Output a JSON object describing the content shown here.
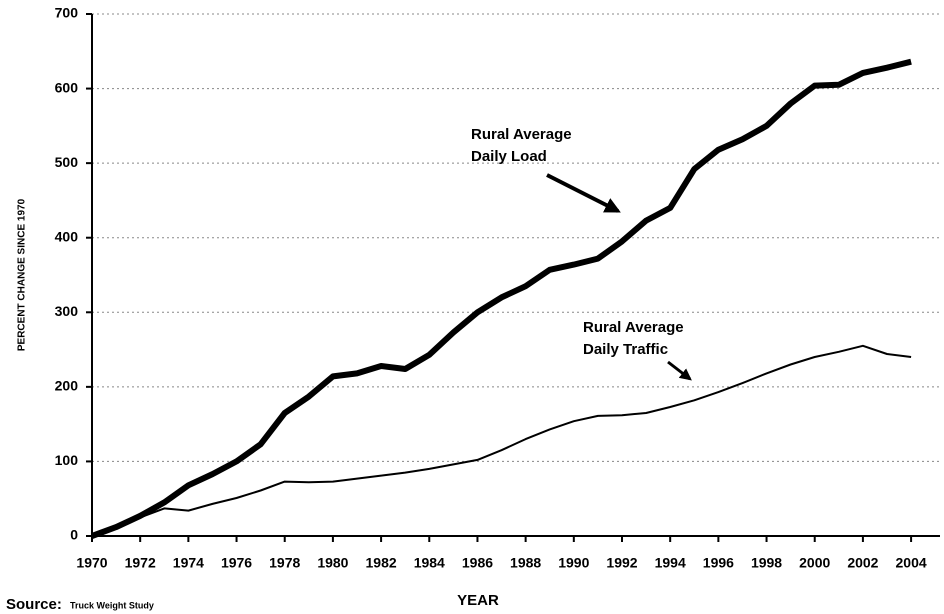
{
  "chart_data": {
    "type": "line",
    "y_label": "PERCENT CHANGE SINCE 1970",
    "x_label": "YEAR",
    "source_label": "Source:",
    "source": "Truck Weight Study",
    "x": [
      1970,
      1971,
      1972,
      1973,
      1974,
      1975,
      1976,
      1977,
      1978,
      1979,
      1980,
      1981,
      1982,
      1983,
      1984,
      1985,
      1986,
      1987,
      1988,
      1989,
      1990,
      1991,
      1992,
      1993,
      1994,
      1995,
      1996,
      1997,
      1998,
      1999,
      2000,
      2001,
      2002,
      2003,
      2004
    ],
    "series": [
      {
        "name": "Rural Average Daily Load",
        "color": "#000000",
        "width": 6,
        "values": [
          0,
          12,
          27,
          45,
          68,
          83,
          100,
          123,
          165,
          187,
          214,
          218,
          228,
          224,
          243,
          273,
          300,
          320,
          335,
          357,
          364,
          372,
          395,
          423,
          440,
          492,
          518,
          532,
          550,
          580,
          604,
          605,
          621,
          628,
          636
        ]
      },
      {
        "name": "Rural Average Daily Traffic",
        "color": "#000000",
        "width": 2,
        "values": [
          0,
          12,
          25,
          37,
          34,
          43,
          51,
          61,
          73,
          72,
          73,
          77,
          81,
          85,
          90,
          96,
          102,
          115,
          130,
          143,
          154,
          161,
          162,
          165,
          173,
          182,
          193,
          205,
          218,
          230,
          240,
          247,
          255,
          244,
          240
        ]
      }
    ],
    "annotations": [
      {
        "lines": [
          "Rural Average",
          "Daily Load"
        ]
      },
      {
        "lines": [
          "Rural Average",
          "Daily Traffic"
        ]
      }
    ],
    "xlim": [
      1970,
      2005.2
    ],
    "xticks": [
      1970,
      1972,
      1974,
      1976,
      1978,
      1980,
      1982,
      1984,
      1986,
      1988,
      1990,
      1992,
      1994,
      1996,
      1998,
      2000,
      2002,
      2004
    ],
    "ylim": [
      0,
      700
    ],
    "yticks": [
      0,
      100,
      200,
      300,
      400,
      500,
      600,
      700
    ],
    "grid": true
  }
}
